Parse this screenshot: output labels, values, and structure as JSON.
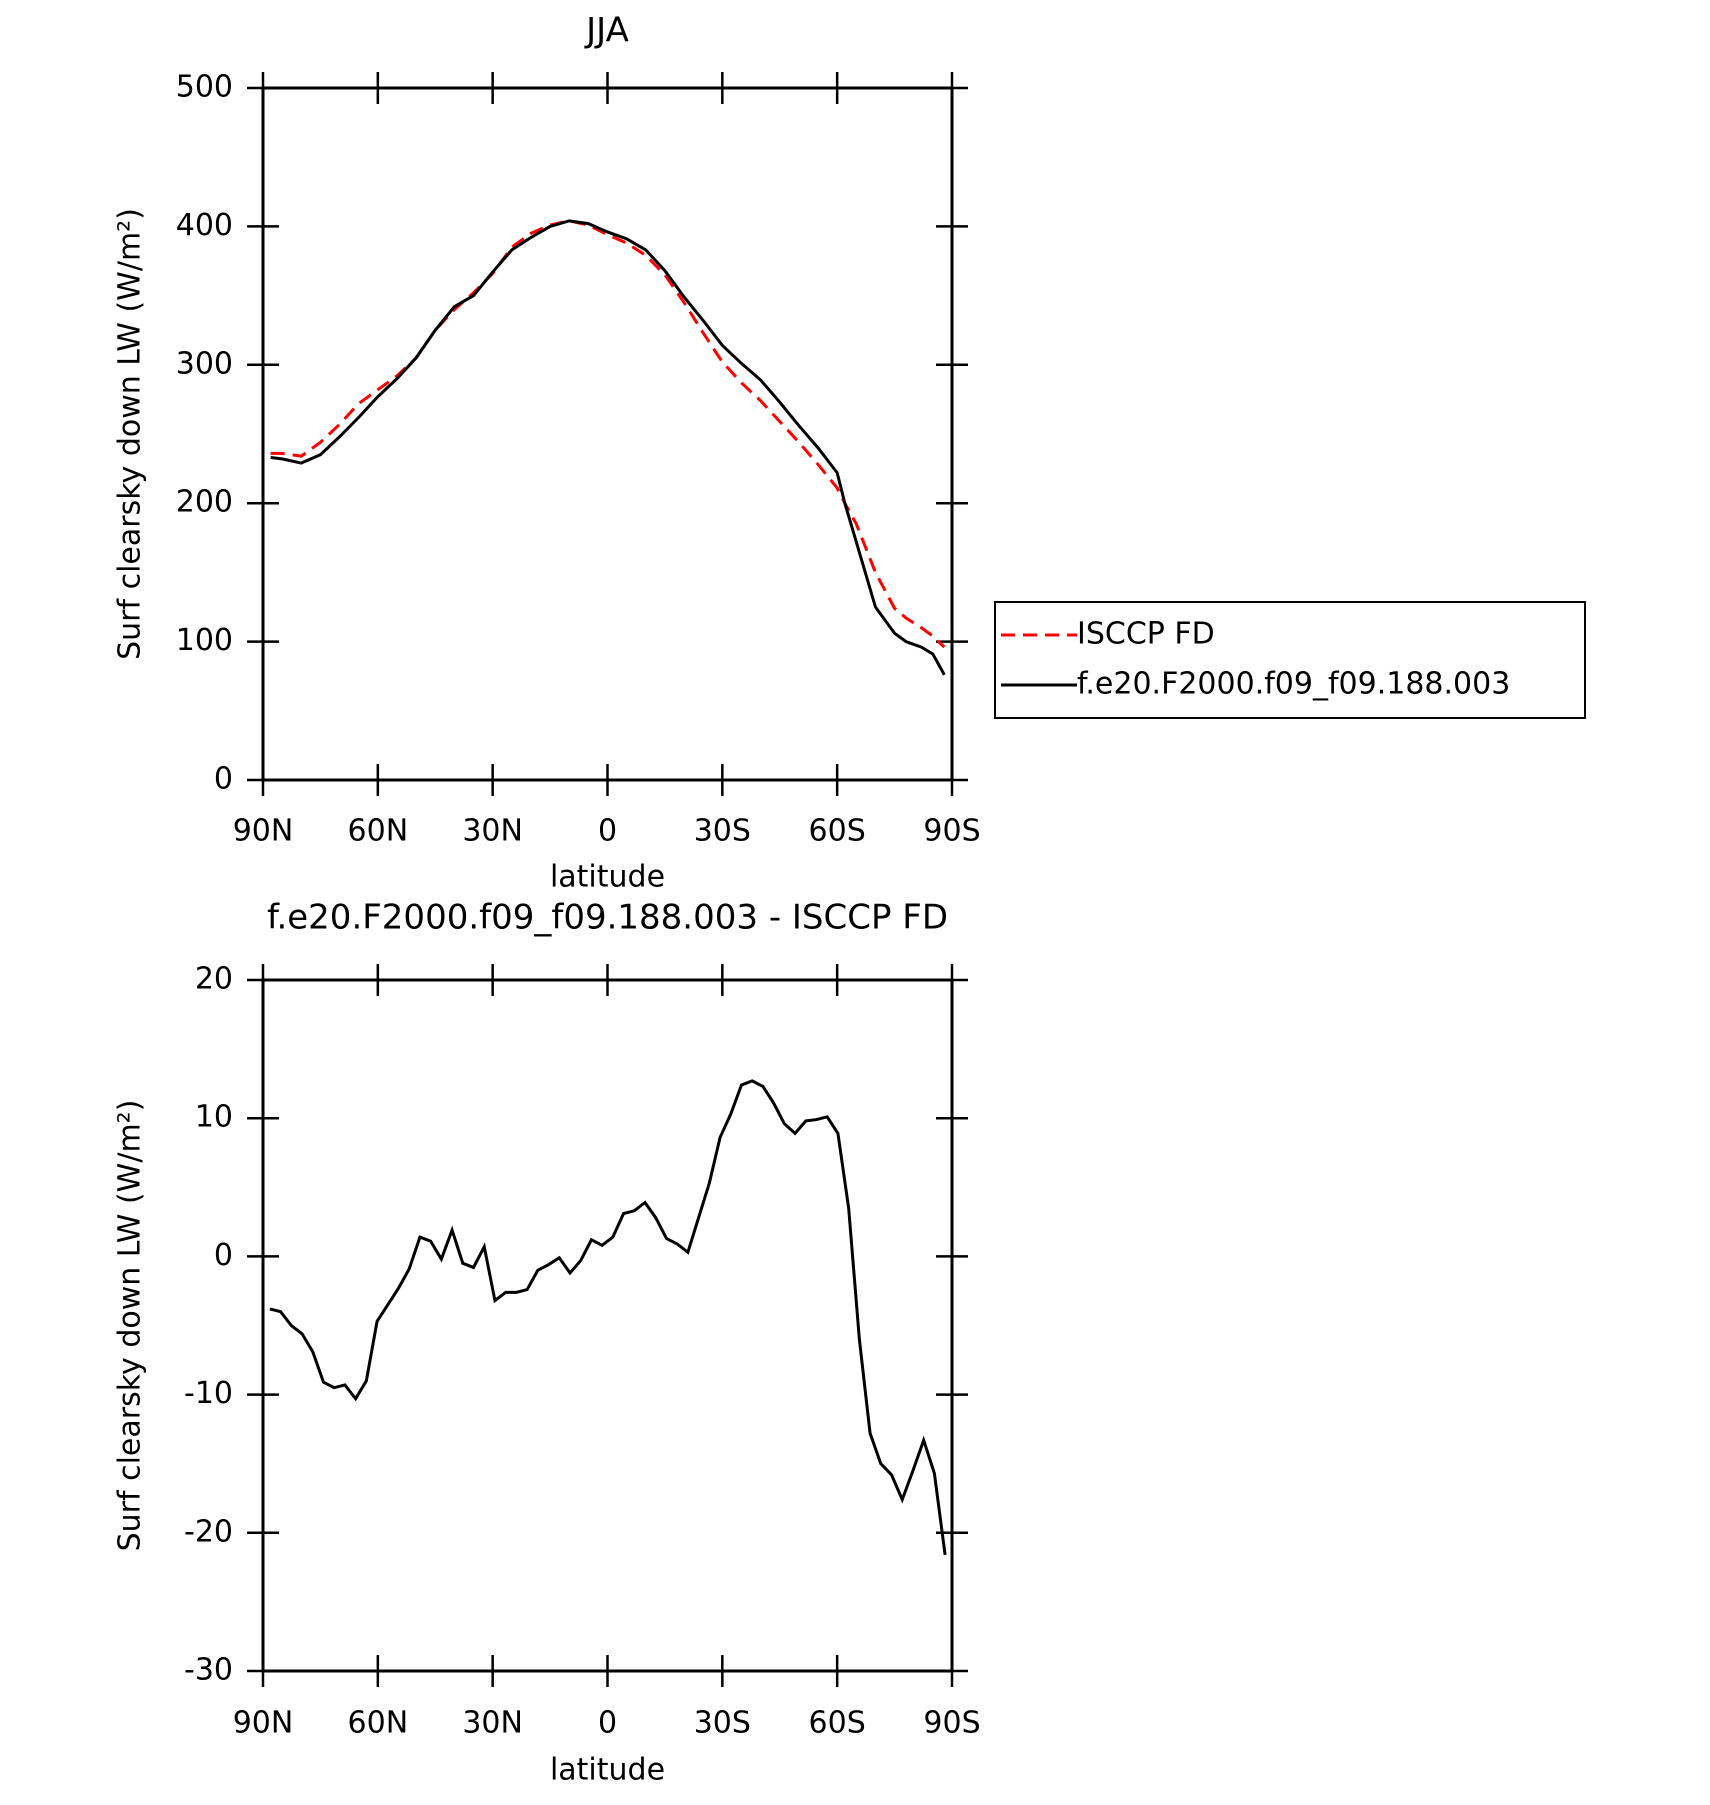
{
  "chart_data": [
    {
      "type": "line",
      "title": "JJA",
      "xlabel": "latitude",
      "ylabel": "Surf clearsky down LW (W/m²)",
      "x": [
        88,
        85,
        80,
        75,
        70,
        65,
        60,
        55,
        50,
        45,
        40,
        35,
        30,
        25,
        20,
        15,
        10,
        5,
        0,
        -5,
        -10,
        -15,
        -20,
        -25,
        -30,
        -35,
        -40,
        -45,
        -50,
        -55,
        -60,
        -62,
        -65,
        -70,
        -75,
        -78,
        -82,
        -85,
        -88
      ],
      "series": [
        {
          "name": "ISCCP FD",
          "color": "#ff0000",
          "dashed": true,
          "values": [
            236,
            236,
            234,
            244,
            257,
            272,
            282,
            292,
            305,
            325,
            340,
            352,
            366,
            385,
            395,
            401,
            404,
            401,
            394,
            388,
            379,
            365,
            345,
            323,
            302,
            287,
            274,
            259,
            244,
            228,
            211,
            200,
            185,
            150,
            124,
            117,
            110,
            104,
            96
          ]
        },
        {
          "name": "f.e20.F2000.f09_f09.188.003",
          "color": "#000000",
          "dashed": false,
          "values": [
            233,
            232,
            229,
            235,
            248,
            262,
            277,
            290,
            305,
            325,
            342,
            350,
            367,
            383,
            392,
            400,
            404,
            402,
            396,
            391,
            383,
            368,
            349,
            332,
            314,
            301,
            289,
            273,
            256,
            240,
            222,
            200,
            172,
            125,
            106,
            100,
            96,
            91,
            76
          ]
        }
      ],
      "xlim": [
        90,
        -90
      ],
      "xticks": [
        {
          "value": 90,
          "label": "90N"
        },
        {
          "value": 60,
          "label": "60N"
        },
        {
          "value": 30,
          "label": "30N"
        },
        0,
        {
          "value": -30,
          "label": "30S"
        },
        {
          "value": -60,
          "label": "60S"
        },
        {
          "value": -90,
          "label": "90S"
        }
      ],
      "ylim": [
        0,
        500
      ],
      "yticks": [
        0,
        100,
        200,
        300,
        400,
        500
      ],
      "legend": "right"
    },
    {
      "type": "line",
      "title": "f.e20.F2000.f09_f09.188.003 - ISCCP FD",
      "xlabel": "latitude",
      "ylabel": "Surf clearsky down LW (W/m²)",
      "x": [
        88.2,
        85.4,
        82.6,
        79.8,
        77.0,
        74.2,
        71.4,
        68.6,
        65.8,
        63.0,
        60.2,
        57.4,
        54.6,
        51.8,
        49.0,
        46.2,
        43.4,
        40.6,
        37.8,
        35.0,
        32.2,
        29.4,
        26.6,
        23.8,
        21.0,
        18.2,
        15.4,
        12.6,
        9.8,
        7.0,
        4.2,
        1.4,
        -1.4,
        -4.2,
        -7.0,
        -9.8,
        -12.6,
        -15.4,
        -18.2,
        -21.0,
        -23.8,
        -26.6,
        -29.4,
        -32.2,
        -35.0,
        -37.8,
        -40.6,
        -43.4,
        -46.2,
        -49.0,
        -51.8,
        -54.6,
        -57.4,
        -60.2,
        -63.0,
        -65.8,
        -68.6,
        -71.4,
        -74.2,
        -77.0,
        -79.8,
        -82.6,
        -85.4,
        -88.2
      ],
      "series": [
        {
          "color": "#000000",
          "dashed": false,
          "values": [
            -3.8,
            -4.0,
            -5.0,
            -5.6,
            -6.9,
            -9.1,
            -9.5,
            -9.3,
            -10.3,
            -9.0,
            -4.7,
            -3.5,
            -2.3,
            -0.9,
            1.4,
            1.1,
            -0.2,
            1.9,
            -0.5,
            -0.8,
            0.7,
            -3.2,
            -2.6,
            -2.6,
            -2.4,
            -1.0,
            -0.6,
            -0.1,
            -1.2,
            -0.3,
            1.2,
            0.8,
            1.4,
            3.1,
            3.3,
            3.9,
            2.8,
            1.3,
            0.9,
            0.3,
            2.8,
            5.3,
            8.6,
            10.3,
            12.4,
            12.7,
            12.3,
            11.1,
            9.6,
            8.9,
            9.8,
            9.9,
            10.1,
            8.9,
            3.5,
            -6.0,
            -12.8,
            -15.0,
            -15.8,
            -17.6,
            -15.5,
            -13.3,
            -15.7,
            -21.6
          ]
        }
      ],
      "xlim": [
        90,
        -90
      ],
      "xticks": [
        {
          "value": 90,
          "label": "90N"
        },
        {
          "value": 60,
          "label": "60N"
        },
        {
          "value": 30,
          "label": "30N"
        },
        0,
        {
          "value": -30,
          "label": "30S"
        },
        {
          "value": -60,
          "label": "60S"
        },
        {
          "value": -90,
          "label": "90S"
        }
      ],
      "ylim": [
        -30,
        20
      ],
      "yticks": [
        -30,
        -20,
        -10,
        0,
        10,
        20
      ]
    }
  ]
}
